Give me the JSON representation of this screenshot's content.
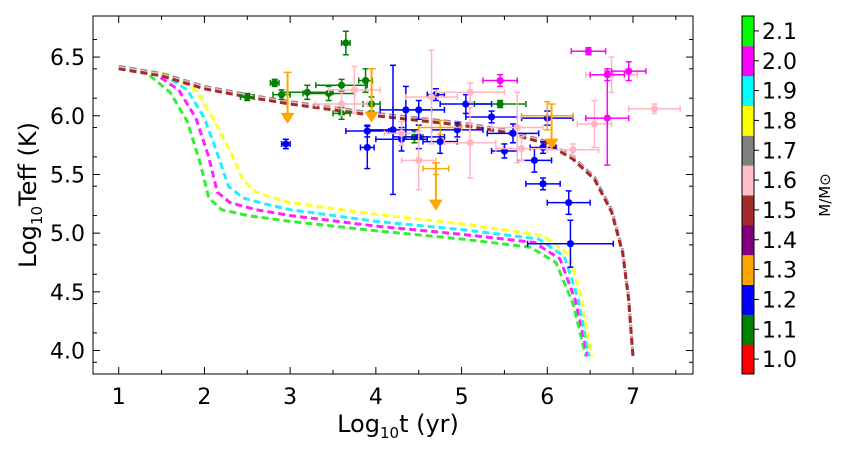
{
  "chart_data": {
    "type": "scatter",
    "xlabel": "Log10t (yr)",
    "ylabel": "Log10Teff (K)",
    "xlim": [
      0.7,
      7.7
    ],
    "ylim": [
      3.8,
      6.85
    ],
    "xticks": [
      1,
      2,
      3,
      4,
      5,
      6,
      7
    ],
    "yticks": [
      4.0,
      4.5,
      5.0,
      5.5,
      6.0,
      6.5
    ],
    "colorbar": {
      "title": "M/M⊙",
      "labels": [
        "1.0",
        "1.1",
        "1.2",
        "1.3",
        "1.4",
        "1.5",
        "1.6",
        "1.7",
        "1.8",
        "1.9",
        "2.0",
        "2.1"
      ],
      "colors": [
        "#ff0000",
        "#008000",
        "#0000ff",
        "#ffa500",
        "#800080",
        "#a52a2a",
        "#ffc0cb",
        "#808080",
        "#ffff00",
        "#00ffff",
        "#ff00ff",
        "#00ff00"
      ]
    },
    "tracks": [
      {
        "name": "2.1",
        "color": "#33ee33",
        "x": [
          1.0,
          1.3,
          1.6,
          1.8,
          1.95,
          2.05,
          2.2,
          2.5,
          3.0,
          4.0,
          5.0,
          5.8,
          6.1,
          6.3,
          6.4,
          6.45
        ],
        "y": [
          6.42,
          6.38,
          6.2,
          5.95,
          5.6,
          5.3,
          5.2,
          5.15,
          5.1,
          5.02,
          4.95,
          4.88,
          4.75,
          4.4,
          4.1,
          3.95
        ]
      },
      {
        "name": "2.0",
        "color": "#ff22ff",
        "x": [
          1.0,
          1.4,
          1.7,
          1.9,
          2.05,
          2.15,
          2.3,
          2.6,
          3.0,
          4.0,
          5.0,
          5.85,
          6.15,
          6.33,
          6.43,
          6.47
        ],
        "y": [
          6.42,
          6.37,
          6.22,
          5.98,
          5.65,
          5.35,
          5.26,
          5.2,
          5.15,
          5.06,
          4.99,
          4.92,
          4.78,
          4.42,
          4.1,
          3.95
        ]
      },
      {
        "name": "1.9",
        "color": "#22eeff",
        "x": [
          1.0,
          1.5,
          1.8,
          2.0,
          2.15,
          2.28,
          2.45,
          2.7,
          3.0,
          4.0,
          5.0,
          5.9,
          6.2,
          6.36,
          6.45,
          6.49
        ],
        "y": [
          6.42,
          6.36,
          6.22,
          5.98,
          5.68,
          5.4,
          5.3,
          5.25,
          5.2,
          5.1,
          5.03,
          4.95,
          4.8,
          4.44,
          4.1,
          3.95
        ]
      },
      {
        "name": "1.8",
        "color": "#ffff22",
        "x": [
          1.0,
          1.6,
          1.9,
          2.1,
          2.3,
          2.45,
          2.6,
          2.8,
          3.0,
          4.0,
          5.0,
          5.95,
          6.25,
          6.4,
          6.48,
          6.52
        ],
        "y": [
          6.42,
          6.35,
          6.22,
          5.98,
          5.7,
          5.45,
          5.35,
          5.3,
          5.26,
          5.16,
          5.08,
          4.98,
          4.82,
          4.45,
          4.1,
          3.95
        ]
      },
      {
        "name": "1.7",
        "color": "#888888",
        "x": [
          1.0,
          1.5,
          2.0,
          2.5,
          3.0,
          3.5,
          4.0,
          4.5,
          5.0,
          5.5,
          6.0,
          6.3,
          6.55,
          6.75,
          6.88,
          6.95,
          6.98,
          7.0
        ],
        "y": [
          6.42,
          6.36,
          6.25,
          6.18,
          6.12,
          6.07,
          6.02,
          5.98,
          5.94,
          5.88,
          5.78,
          5.65,
          5.48,
          5.2,
          4.85,
          4.45,
          4.15,
          3.95
        ]
      },
      {
        "name": "1.6",
        "color": "#ffbbcc",
        "x": [
          1.0,
          1.5,
          2.0,
          2.5,
          3.0,
          3.5,
          4.0,
          4.5,
          5.0,
          5.5,
          6.0,
          6.3,
          6.55,
          6.75,
          6.88,
          6.95,
          6.98,
          7.0
        ],
        "y": [
          6.41,
          6.35,
          6.24,
          6.17,
          6.11,
          6.06,
          6.01,
          5.97,
          5.93,
          5.87,
          5.77,
          5.64,
          5.47,
          5.19,
          4.84,
          4.44,
          4.14,
          3.95
        ]
      },
      {
        "name": "1.5",
        "color": "#a52a2a",
        "x": [
          1.0,
          1.5,
          2.0,
          2.5,
          3.0,
          3.5,
          4.0,
          4.5,
          5.0,
          5.5,
          6.0,
          6.3,
          6.55,
          6.75,
          6.88,
          6.95,
          6.98,
          7.0
        ],
        "y": [
          6.4,
          6.34,
          6.23,
          6.16,
          6.1,
          6.05,
          6.0,
          5.96,
          5.92,
          5.86,
          5.76,
          5.63,
          5.46,
          5.18,
          4.83,
          4.43,
          4.13,
          3.95
        ]
      }
    ],
    "points": [
      {
        "x": 2.5,
        "y": 6.16,
        "xerr": 0.08,
        "yerr": 0.03,
        "color": "#008000"
      },
      {
        "x": 2.82,
        "y": 6.28,
        "xerr": 0.05,
        "yerr": 0.03,
        "color": "#008000"
      },
      {
        "x": 2.9,
        "y": 6.18,
        "xerr": 0.1,
        "yerr": 0.04,
        "color": "#008000"
      },
      {
        "x": 3.2,
        "y": 6.2,
        "xerr": 0.3,
        "yerr": 0.06,
        "color": "#008000"
      },
      {
        "x": 3.45,
        "y": 6.19,
        "xerr": 0.3,
        "yerr": 0.06,
        "color": "#008000"
      },
      {
        "x": 3.65,
        "y": 6.62,
        "xerr": 0.05,
        "yerr": 0.1,
        "color": "#008000"
      },
      {
        "x": 3.6,
        "y": 6.26,
        "xerr": 0.3,
        "yerr": 0.05,
        "color": "#008000"
      },
      {
        "x": 3.88,
        "y": 6.3,
        "xerr": 0.08,
        "yerr": 0.1,
        "color": "#008000"
      },
      {
        "x": 3.95,
        "y": 6.1,
        "xerr": 0.1,
        "yerr": 0.06,
        "color": "#008000"
      },
      {
        "x": 3.6,
        "y": 6.02,
        "xerr": 0.1,
        "yerr": 0.05,
        "color": "#008000"
      },
      {
        "x": 4.45,
        "y": 5.82,
        "xerr": 0.1,
        "yerr": 0.05,
        "color": "#008000"
      },
      {
        "x": 5.45,
        "y": 6.1,
        "xerr": 0.3,
        "yerr": 0.03,
        "color": "#008000"
      },
      {
        "x": 2.95,
        "y": 5.76,
        "xerr": 0.05,
        "yerr": 0.04,
        "color": "#0000ff"
      },
      {
        "x": 3.9,
        "y": 5.73,
        "xerr": 0.08,
        "yerr": 0.18,
        "color": "#0000ff"
      },
      {
        "x": 3.9,
        "y": 5.87,
        "xerr": 0.25,
        "yerr": 0.05,
        "color": "#0000ff"
      },
      {
        "x": 4.2,
        "y": 5.88,
        "xerr": 0.3,
        "yerr": 0.55,
        "color": "#0000ff"
      },
      {
        "x": 4.35,
        "y": 6.05,
        "xerr": 0.3,
        "yerr": 0.2,
        "color": "#0000ff"
      },
      {
        "x": 4.3,
        "y": 5.8,
        "xerr": 0.3,
        "yerr": 0.1,
        "color": "#0000ff"
      },
      {
        "x": 4.5,
        "y": 5.82,
        "xerr": 0.3,
        "yerr": 0.1,
        "color": "#0000ff"
      },
      {
        "x": 4.5,
        "y": 6.05,
        "xerr": 0.3,
        "yerr": 0.08,
        "color": "#0000ff"
      },
      {
        "x": 4.75,
        "y": 5.78,
        "xerr": 0.2,
        "yerr": 0.1,
        "color": "#0000ff"
      },
      {
        "x": 4.95,
        "y": 5.88,
        "xerr": 0.3,
        "yerr": 0.06,
        "color": "#0000ff"
      },
      {
        "x": 4.7,
        "y": 6.18,
        "xerr": 0.1,
        "yerr": 0.05,
        "color": "#0000ff"
      },
      {
        "x": 5.05,
        "y": 6.1,
        "xerr": 0.3,
        "yerr": 0.08,
        "color": "#0000ff"
      },
      {
        "x": 5.35,
        "y": 5.99,
        "xerr": 0.3,
        "yerr": 0.05,
        "color": "#0000ff"
      },
      {
        "x": 5.5,
        "y": 5.7,
        "xerr": 0.15,
        "yerr": 0.06,
        "color": "#0000ff"
      },
      {
        "x": 5.6,
        "y": 5.85,
        "xerr": 0.3,
        "yerr": 0.08,
        "color": "#0000ff"
      },
      {
        "x": 5.85,
        "y": 5.62,
        "xerr": 0.2,
        "yerr": 0.1,
        "color": "#0000ff"
      },
      {
        "x": 5.95,
        "y": 5.73,
        "xerr": 0.15,
        "yerr": 0.05,
        "color": "#0000ff"
      },
      {
        "x": 6.0,
        "y": 5.98,
        "xerr": 0.3,
        "yerr": 0.06,
        "color": "#0000ff"
      },
      {
        "x": 5.95,
        "y": 5.42,
        "xerr": 0.2,
        "yerr": 0.05,
        "color": "#0000ff"
      },
      {
        "x": 6.25,
        "y": 5.26,
        "xerr": 0.25,
        "yerr": 0.1,
        "color": "#0000ff"
      },
      {
        "x": 6.27,
        "y": 4.91,
        "xerr": 0.5,
        "yerr": 0.2,
        "color": "#0000ff"
      },
      {
        "x": 3.6,
        "y": 6.1,
        "xerr": 0.3,
        "yerr": 0.1,
        "color": "#ffb6c1"
      },
      {
        "x": 3.75,
        "y": 6.22,
        "xerr": 0.3,
        "yerr": 0.2,
        "color": "#ffb6c1"
      },
      {
        "x": 4.3,
        "y": 5.85,
        "xerr": 0.2,
        "yerr": 0.1,
        "color": "#ffb6c1"
      },
      {
        "x": 4.65,
        "y": 6.16,
        "xerr": 0.3,
        "yerr": 0.4,
        "color": "#ffb6c1"
      },
      {
        "x": 4.5,
        "y": 5.62,
        "xerr": 0.2,
        "yerr": 0.25,
        "color": "#ffb6c1"
      },
      {
        "x": 5.1,
        "y": 5.77,
        "xerr": 0.3,
        "yerr": 0.3,
        "color": "#ffb6c1"
      },
      {
        "x": 5.1,
        "y": 6.2,
        "xerr": 0.4,
        "yerr": 0.08,
        "color": "#ffb6c1"
      },
      {
        "x": 5.65,
        "y": 5.9,
        "xerr": 0.3,
        "yerr": 0.3,
        "color": "#ffb6c1"
      },
      {
        "x": 5.7,
        "y": 5.72,
        "xerr": 0.3,
        "yerr": 0.1,
        "color": "#ffb6c1"
      },
      {
        "x": 6.3,
        "y": 5.71,
        "xerr": 0.3,
        "yerr": 0.05,
        "color": "#ffb6c1"
      },
      {
        "x": 6.55,
        "y": 5.93,
        "xerr": 0.2,
        "yerr": 0.2,
        "color": "#ffb6c1"
      },
      {
        "x": 6.75,
        "y": 6.35,
        "xerr": 0.3,
        "yerr": 0.15,
        "color": "#ffb6c1"
      },
      {
        "x": 7.25,
        "y": 6.06,
        "xerr": 0.3,
        "yerr": 0.04,
        "color": "#ffb6c1"
      },
      {
        "x": 5.45,
        "y": 6.3,
        "xerr": 0.2,
        "yerr": 0.05,
        "color": "#ff00ff"
      },
      {
        "x": 6.48,
        "y": 6.55,
        "xerr": 0.2,
        "yerr": 0.03,
        "color": "#ff00ff"
      },
      {
        "x": 6.7,
        "y": 6.35,
        "xerr": 0.2,
        "yerr": 0.05,
        "color": "#ff00ff"
      },
      {
        "x": 6.95,
        "y": 6.38,
        "xerr": 0.2,
        "yerr": 0.08,
        "color": "#ff00ff"
      },
      {
        "x": 6.7,
        "y": 5.98,
        "xerr": 0.25,
        "yerr": 0.4,
        "color": "#ff00ff"
      }
    ],
    "orange_errs": [
      {
        "x": 6.0,
        "y": 6.0,
        "xerr": 0.3,
        "yerr": 0.12
      },
      {
        "x": 4.75,
        "y": 5.9,
        "xerr": 0.25,
        "yerr": 0.06
      },
      {
        "x": 4.7,
        "y": 5.55,
        "xerr": 0.15,
        "yerr": 0.05
      }
    ],
    "upper_limits": [
      {
        "x": 2.97,
        "y_top": 6.37,
        "y_tip": 5.94,
        "color": "#ffa500"
      },
      {
        "x": 3.95,
        "y_top": 6.4,
        "y_tip": 5.95,
        "color": "#ffa500"
      },
      {
        "x": 4.7,
        "y_top": 5.6,
        "y_tip": 5.2,
        "color": "#ffa500"
      },
      {
        "x": 6.05,
        "y_top": 6.1,
        "y_tip": 5.72,
        "color": "#ffa500"
      }
    ]
  }
}
